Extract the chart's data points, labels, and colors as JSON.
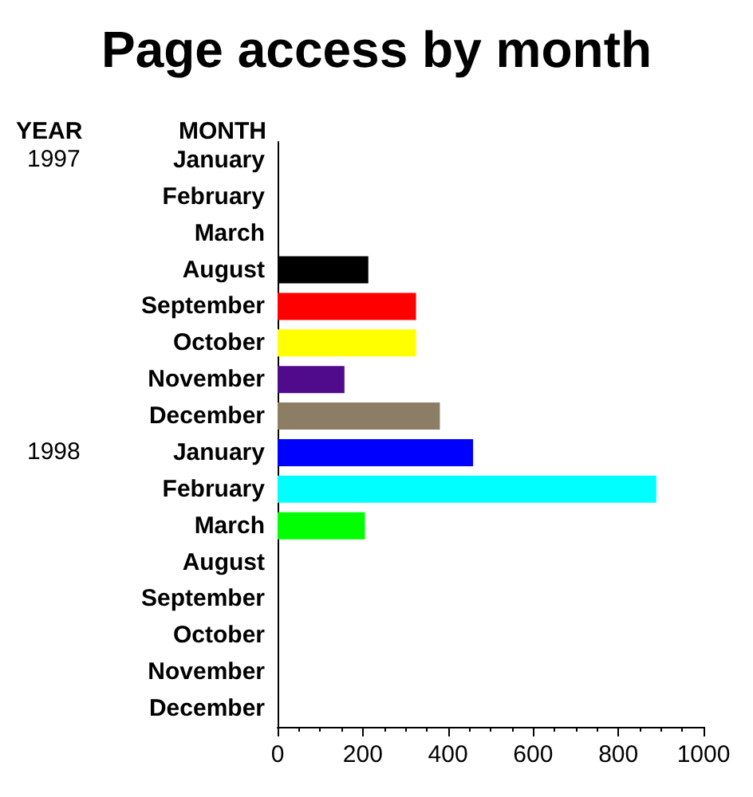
{
  "chart_data": {
    "type": "bar",
    "orientation": "horizontal",
    "title": "Page access by month",
    "ylabel": "MONTH",
    "annotations": [
      "YEAR",
      "1997",
      "1998"
    ],
    "categories": [
      "January",
      "February",
      "March",
      "August",
      "September",
      "October",
      "November",
      "December",
      "January",
      "February",
      "March",
      "August",
      "September",
      "October",
      "November",
      "December"
    ],
    "values": [
      null,
      null,
      null,
      213,
      325,
      325,
      157,
      381,
      459,
      889,
      205,
      null,
      null,
      null,
      null,
      null
    ],
    "colors": [
      null,
      null,
      null,
      "#000000",
      "#ff0000",
      "#ffff00",
      "#500a8c",
      "#8c7d64",
      "#0000ff",
      "#00ffff",
      "#00ff00",
      null,
      null,
      null,
      null,
      null
    ],
    "xlim": [
      0,
      1000
    ],
    "xticks": [
      0,
      200,
      400,
      600,
      800,
      1000
    ]
  }
}
